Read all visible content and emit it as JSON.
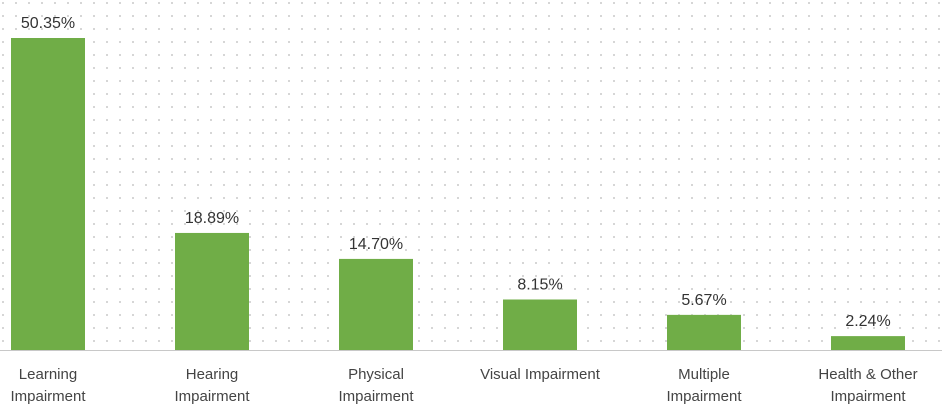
{
  "chart_data": {
    "type": "bar",
    "categories": [
      "Learning Impairment",
      "Hearing Impairment",
      "Physical Impairment",
      "Visual Impairment",
      "Multiple Impairment",
      "Health & Other Impairment"
    ],
    "values": [
      50.35,
      18.89,
      14.7,
      8.15,
      5.67,
      2.24
    ],
    "value_labels": [
      "50.35%",
      "18.89%",
      "14.70%",
      "8.15%",
      "5.67%",
      "2.24%"
    ],
    "color": "#70ad47"
  }
}
